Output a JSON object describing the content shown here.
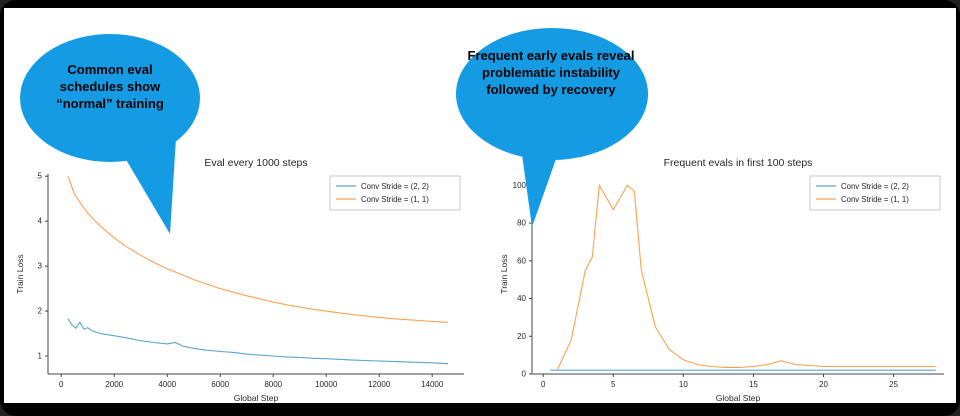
{
  "frame": {
    "bg": "#000000",
    "content_bg": "#ffffff"
  },
  "callouts": [
    {
      "text": "Common eval schedules show “normal” training",
      "color": "#149be4"
    },
    {
      "text": "Frequent early evals reveal problematic instability followed by recovery",
      "color": "#149be4"
    }
  ],
  "colors": {
    "series_blue": "#5ba3d0",
    "series_orange": "#ffa04e",
    "axis": "#444444",
    "text": "#262626"
  },
  "chart_data": [
    {
      "type": "line",
      "title": "Eval every 1000 steps",
      "xlabel": "Global Step",
      "ylabel": "Train Loss",
      "xlim": [
        -500,
        15200
      ],
      "ylim": [
        0.6,
        5.05
      ],
      "xticks": [
        0,
        2000,
        4000,
        6000,
        8000,
        10000,
        12000,
        14000
      ],
      "yticks": [
        1,
        2,
        3,
        4,
        5
      ],
      "legend_position": "upper right",
      "grid": false,
      "series": [
        {
          "name": "Conv Stride =  (2, 2)",
          "color": "#5ba3d0",
          "x": [
            250,
            400,
            550,
            700,
            850,
            1000,
            1200,
            1500,
            1800,
            2100,
            2500,
            3000,
            3500,
            4000,
            4300,
            4600,
            5000,
            5500,
            6000,
            6500,
            7000,
            7500,
            8000,
            8500,
            9000,
            9500,
            10000,
            11000,
            12000,
            13000,
            14000,
            14600
          ],
          "y": [
            1.83,
            1.7,
            1.62,
            1.75,
            1.6,
            1.63,
            1.55,
            1.5,
            1.47,
            1.44,
            1.4,
            1.34,
            1.3,
            1.27,
            1.3,
            1.22,
            1.17,
            1.13,
            1.1,
            1.08,
            1.04,
            1.02,
            1.0,
            0.98,
            0.97,
            0.95,
            0.94,
            0.91,
            0.89,
            0.87,
            0.85,
            0.83
          ]
        },
        {
          "name": "Conv Stride =  (1, 1)",
          "color": "#ffa04e",
          "x": [
            250,
            500,
            750,
            1000,
            1250,
            1500,
            1750,
            2000,
            2250,
            2500,
            2750,
            3000,
            3500,
            4000,
            4500,
            5000,
            5500,
            6000,
            6500,
            7000,
            7500,
            8000,
            8500,
            9000,
            9500,
            10000,
            10500,
            11000,
            11500,
            12000,
            12500,
            13000,
            13500,
            14000,
            14600
          ],
          "y": [
            5.0,
            4.6,
            4.38,
            4.18,
            4.02,
            3.88,
            3.75,
            3.63,
            3.52,
            3.42,
            3.33,
            3.24,
            3.08,
            2.94,
            2.82,
            2.7,
            2.6,
            2.5,
            2.42,
            2.34,
            2.27,
            2.2,
            2.14,
            2.09,
            2.04,
            2.0,
            1.96,
            1.92,
            1.89,
            1.86,
            1.83,
            1.81,
            1.79,
            1.77,
            1.75
          ]
        }
      ]
    },
    {
      "type": "line",
      "title": "Frequent evals in first 100 steps",
      "xlabel": "Global Step",
      "ylabel": "Train Loss",
      "xlim": [
        -0.8,
        28.6
      ],
      "ylim": [
        0,
        106
      ],
      "xticks": [
        0,
        5,
        10,
        15,
        20,
        25
      ],
      "yticks": [
        0,
        20,
        40,
        60,
        80,
        100
      ],
      "legend_position": "upper right",
      "grid": false,
      "series": [
        {
          "name": "Conv Stride =  (2, 2)",
          "color": "#5ba3d0",
          "x": [
            0.5,
            4,
            8,
            12,
            16,
            20,
            24,
            28
          ],
          "y": [
            2,
            2,
            2,
            2,
            2,
            2,
            2,
            2
          ]
        },
        {
          "name": "Conv Stride =  (1, 1)",
          "color": "#ffa04e",
          "x": [
            1,
            2,
            3,
            3.5,
            4,
            5,
            6,
            6.5,
            7,
            8,
            9,
            10,
            11,
            12,
            13,
            14,
            15,
            16,
            17,
            18,
            19,
            20,
            22,
            24,
            26,
            28
          ],
          "y": [
            2,
            18,
            55,
            62,
            100,
            87,
            100,
            97,
            55,
            25,
            13,
            7.5,
            5,
            4,
            3.5,
            3.5,
            4,
            5,
            7,
            5,
            4.5,
            4,
            4,
            4,
            4,
            4
          ]
        }
      ]
    }
  ]
}
